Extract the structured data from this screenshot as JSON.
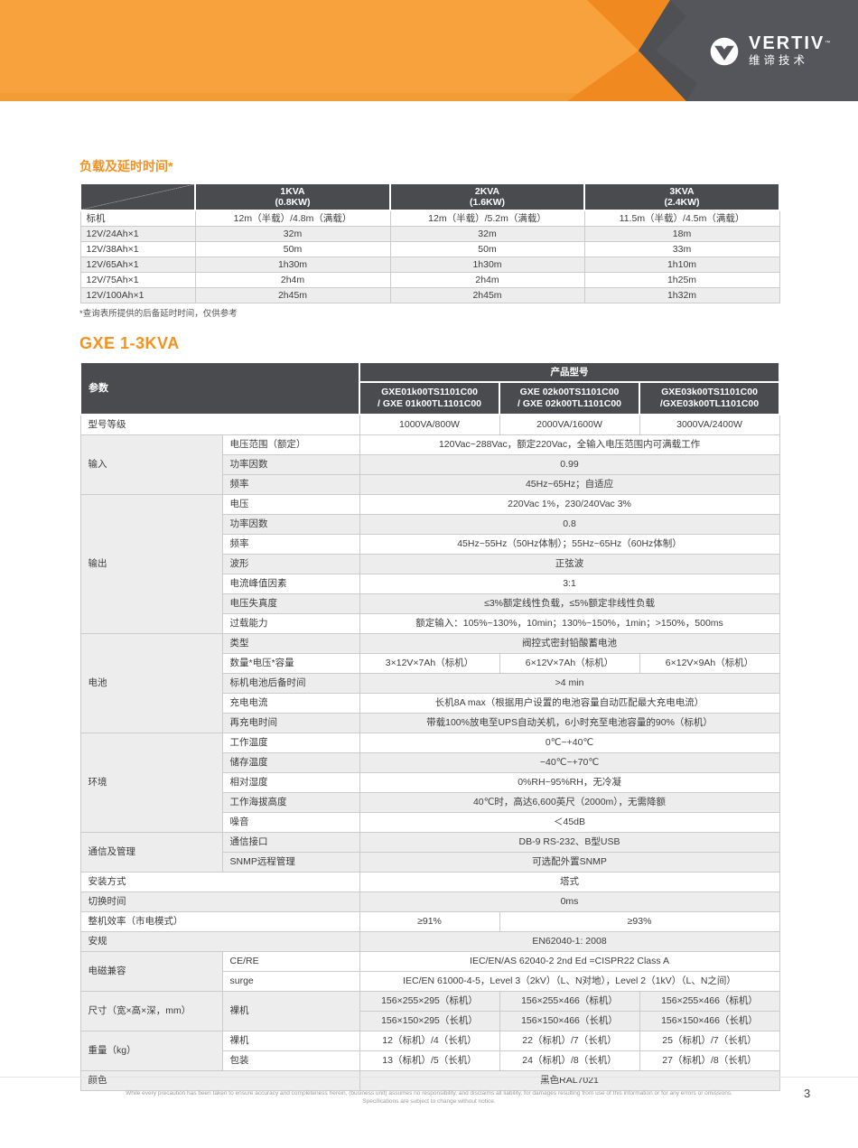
{
  "header": {
    "brand": "VERTIV",
    "brand_tm": "™",
    "brand_cn": "维谛技术",
    "colors": {
      "orange_light": "#F7A23C",
      "orange_dark": "#F08A20",
      "gray_dark": "#54565B",
      "gray_facet": "#4B4D51",
      "accent_orange": "#F6911E",
      "table_header": "#4A4B4E",
      "stripe_gray": "#EDEDEE"
    }
  },
  "runtime_table": {
    "title": "负载及延时时间*",
    "footnote": "*查询表所提供的后备延时时间，仅供参考",
    "columns": [
      {
        "line1": "1KVA",
        "line2": "(0.8KW)"
      },
      {
        "line1": "2KVA",
        "line2": "(1.6KW)"
      },
      {
        "line1": "3KVA",
        "line2": "(2.4KW)"
      }
    ],
    "rows": [
      {
        "label": "标机",
        "bg": "w",
        "values": [
          "12m（半载）/4.8m（满载）",
          "12m（半载）/5.2m（满载）",
          "11.5m（半载）/4.5m（满载）"
        ]
      },
      {
        "label": "12V/24Ah×1",
        "bg": "g",
        "values": [
          "32m",
          "32m",
          "18m"
        ]
      },
      {
        "label": "12V/38Ah×1",
        "bg": "w",
        "values": [
          "50m",
          "50m",
          "33m"
        ]
      },
      {
        "label": "12V/65Ah×1",
        "bg": "g",
        "values": [
          "1h30m",
          "1h30m",
          "1h10m"
        ]
      },
      {
        "label": "12V/75Ah×1",
        "bg": "w",
        "values": [
          "2h4m",
          "2h4m",
          "1h25m"
        ]
      },
      {
        "label": "12V/100Ah×1",
        "bg": "g",
        "values": [
          "2h45m",
          "2h45m",
          "1h32m"
        ]
      }
    ]
  },
  "spec_table": {
    "title": "GXE 1-3KVA",
    "param_header": "参数",
    "product_header": "产品型号",
    "models": [
      {
        "line1": "GXE01k00TS1101C00",
        "line2": "/ GXE 01k00TL1101C00"
      },
      {
        "line1": "GXE 02k00TS1101C00",
        "line2": "/ GXE 02k00TL1101C00"
      },
      {
        "line1": "GXE03k00TS1101C00",
        "line2": "/GXE03k00TL1101C00"
      }
    ],
    "rows": [
      {
        "label": "型号等级",
        "span2": true,
        "bg": "w",
        "values": [
          {
            "t": "1000VA/800W"
          },
          {
            "t": "2000VA/1600W"
          },
          {
            "t": "3000VA/2400W"
          }
        ]
      },
      {
        "section": {
          "name": "输入",
          "rows": 3
        },
        "label": "电压范围（额定）",
        "bg": "w",
        "values": [
          {
            "t": "120Vac~288Vac，额定220Vac，全输入电压范围内可满载工作",
            "span": 3
          }
        ]
      },
      {
        "label": "功率因数",
        "bg": "g",
        "values": [
          {
            "t": "0.99",
            "span": 3
          }
        ]
      },
      {
        "label": "频率",
        "bg": "g",
        "values": [
          {
            "t": "45Hz~65Hz；自适应",
            "span": 3
          }
        ]
      },
      {
        "section": {
          "name": "输出",
          "rows": 7
        },
        "label": "电压",
        "bg": "w",
        "values": [
          {
            "t": "220Vac 1%，230/240Vac 3%",
            "span": 3
          }
        ]
      },
      {
        "label": "功率因数",
        "bg": "g",
        "values": [
          {
            "t": "0.8",
            "span": 3
          }
        ]
      },
      {
        "label": "频率",
        "bg": "w",
        "values": [
          {
            "t": "45Hz~55Hz（50Hz体制）；55Hz~65Hz（60Hz体制）",
            "span": 3
          }
        ]
      },
      {
        "label": "波形",
        "bg": "g",
        "values": [
          {
            "t": "正弦波",
            "span": 3
          }
        ]
      },
      {
        "label": "电流峰值因素",
        "bg": "w",
        "values": [
          {
            "t": "3:1",
            "span": 3
          }
        ]
      },
      {
        "label": "电压失真度",
        "bg": "g",
        "values": [
          {
            "t": "≤3%额定线性负载，≤5%额定非线性负载",
            "span": 3
          }
        ]
      },
      {
        "label": "过载能力",
        "bg": "w",
        "values": [
          {
            "t": "额定输入：105%~130%，10min；130%~150%，1min；>150%，500ms",
            "span": 3
          }
        ]
      },
      {
        "section": {
          "name": "电池",
          "rows": 5
        },
        "label": "类型",
        "bg": "g",
        "values": [
          {
            "t": "阀控式密封铅酸蓄电池",
            "span": 3
          }
        ]
      },
      {
        "label": "数量*电压*容量",
        "bg": "w",
        "values": [
          {
            "t": "3×12V×7Ah（标机）"
          },
          {
            "t": "6×12V×7Ah（标机）"
          },
          {
            "t": "6×12V×9Ah（标机）"
          }
        ]
      },
      {
        "label": "标机电池后备时间",
        "bg": "g",
        "values": [
          {
            "t": ">4 min",
            "span": 3
          }
        ]
      },
      {
        "label": "充电电流",
        "bg": "w",
        "values": [
          {
            "t": "长机8A max（根据用户设置的电池容量自动匹配最大充电电流）",
            "span": 3
          }
        ]
      },
      {
        "label": "再充电时间",
        "bg": "g",
        "values": [
          {
            "t": "带载100%放电至UPS自动关机，6小时充至电池容量的90%（标机）",
            "span": 3
          }
        ]
      },
      {
        "section": {
          "name": "环境",
          "rows": 5
        },
        "label": "工作温度",
        "bg": "w",
        "values": [
          {
            "t": "0℃~+40℃",
            "span": 3
          }
        ]
      },
      {
        "label": "储存温度",
        "bg": "g",
        "values": [
          {
            "t": "−40℃~+70℃",
            "span": 3
          }
        ]
      },
      {
        "label": "相对湿度",
        "bg": "w",
        "values": [
          {
            "t": "0%RH~95%RH，无冷凝",
            "span": 3
          }
        ]
      },
      {
        "label": "工作海拔高度",
        "bg": "g",
        "values": [
          {
            "t": "40℃时，高达6,600英尺（2000m），无需降额",
            "span": 3
          }
        ]
      },
      {
        "label": "噪音",
        "bg": "w",
        "values": [
          {
            "t": "＜45dB",
            "span": 3
          }
        ]
      },
      {
        "section": {
          "name": "通信及管理",
          "rows": 2
        },
        "label": "通信接口",
        "bg": "g",
        "values": [
          {
            "t": "DB-9 RS-232、B型USB",
            "span": 3
          }
        ]
      },
      {
        "label": "SNMP远程管理",
        "bg": "g",
        "values": [
          {
            "t": "可选配外置SNMP",
            "span": 3
          }
        ]
      },
      {
        "label": "安装方式",
        "span2": true,
        "bg": "w",
        "values": [
          {
            "t": "塔式",
            "span": 3
          }
        ]
      },
      {
        "label": "切换时间",
        "span2": true,
        "bg": "g",
        "values": [
          {
            "t": "0ms",
            "span": 3
          }
        ]
      },
      {
        "label": "整机效率（市电模式）",
        "span2": true,
        "bg": "w",
        "values": [
          {
            "t": "≥91%"
          },
          {
            "t": "≥93%",
            "span": 2
          }
        ]
      },
      {
        "label": "安规",
        "span2": true,
        "bg": "g",
        "values": [
          {
            "t": "EN62040-1: 2008",
            "span": 3
          }
        ]
      },
      {
        "section": {
          "name": "电磁兼容",
          "rows": 2
        },
        "label": "CE/RE",
        "bg": "w",
        "values": [
          {
            "t": "IEC/EN/AS 62040-2 2nd Ed =CISPR22 Class A",
            "span": 3
          }
        ]
      },
      {
        "label": "surge",
        "bg": "w",
        "values": [
          {
            "t": "IEC/EN 61000-4-5，Level 3（2kV）（L、N对地），Level 2（1kV）（L、N之间）",
            "span": 3
          }
        ]
      },
      {
        "section": {
          "name": "尺寸（宽×高×深，mm）",
          "rows": 2
        },
        "label": "裸机",
        "label_rows": 2,
        "bg": "g",
        "values": [
          {
            "t": "156×255×295（标机）"
          },
          {
            "t": "156×255×466（标机）"
          },
          {
            "t": "156×255×466（标机）"
          }
        ]
      },
      {
        "bg": "g",
        "values": [
          {
            "t": "156×150×295（长机）"
          },
          {
            "t": "156×150×466（长机）"
          },
          {
            "t": "156×150×466（长机）"
          }
        ]
      },
      {
        "section": {
          "name": "重量（kg）",
          "rows": 2
        },
        "label": "裸机",
        "bg": "w",
        "values": [
          {
            "t": "12（标机）/4（长机）"
          },
          {
            "t": "22（标机）/7（长机）"
          },
          {
            "t": "25（标机）/7（长机）"
          }
        ]
      },
      {
        "label": "包装",
        "bg": "w",
        "values": [
          {
            "t": "13（标机）/5（长机）"
          },
          {
            "t": "24（标机）/8（长机）"
          },
          {
            "t": "27（标机）/8（长机）"
          }
        ]
      },
      {
        "label": "颜色",
        "span2": true,
        "bg": "g",
        "values": [
          {
            "t": "黑色RAL7021",
            "span": 3
          }
        ]
      }
    ]
  },
  "footer": {
    "line1": "While every precaution has been taken to ensure accuracy and completeness herein, (business unit) assumes no responsibility, and disclaims all liability, for damages resulting from use of this information or for any errors or omissions.",
    "line2": "Specifications are subject to change without notice.",
    "page": "3"
  }
}
